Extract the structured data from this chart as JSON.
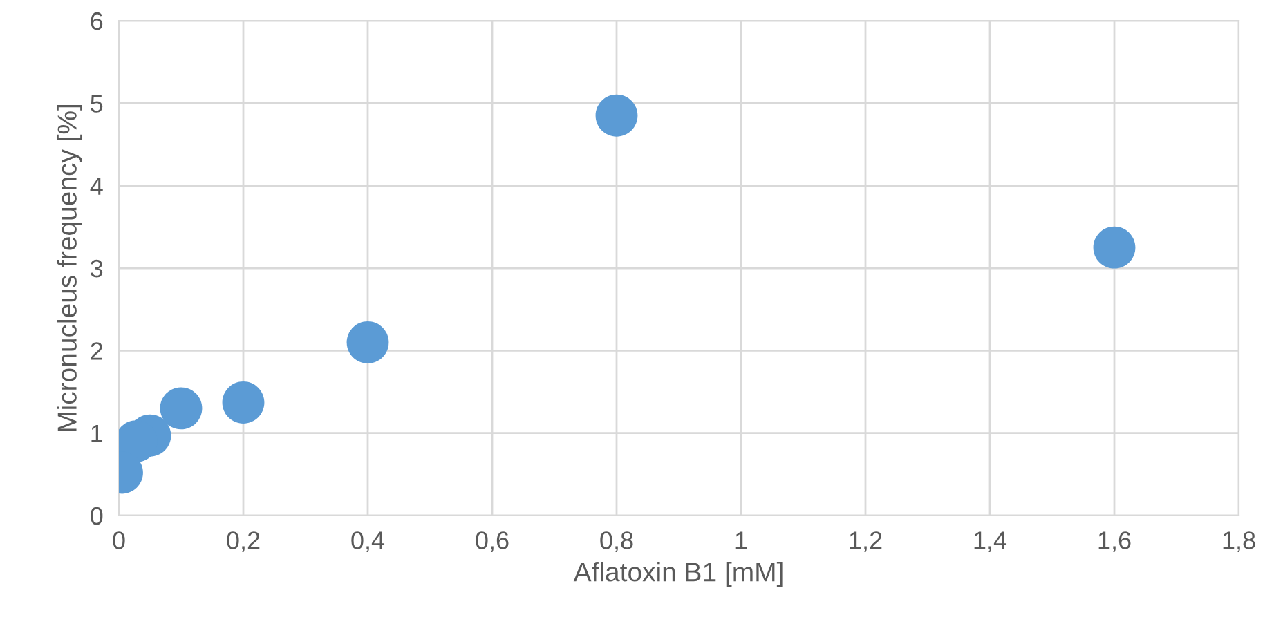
{
  "chart_data": {
    "type": "scatter",
    "xlabel": "Aflatoxin B1 [mM]",
    "ylabel": "Micronucleus frequency [%]",
    "series": [
      {
        "color": "#5b9bd5",
        "x": [
          0.005,
          0.028,
          0.05,
          0.1,
          0.2,
          0.4,
          0.8,
          1.6
        ],
        "values": [
          0.52,
          0.9,
          0.97,
          1.3,
          1.37,
          2.1,
          4.85,
          3.25
        ]
      }
    ],
    "marker": "circle",
    "grid": true,
    "legend": false,
    "xlim": [
      0,
      1.8
    ],
    "ylim": [
      0,
      6
    ],
    "xticks": [
      0,
      {
        "value": 0.2,
        "label": "0,2"
      },
      {
        "value": 0.4,
        "label": "0,4"
      },
      {
        "value": 0.6,
        "label": "0,6"
      },
      {
        "value": 0.8,
        "label": "0,8"
      },
      1,
      {
        "value": 1.2,
        "label": "1,2"
      },
      {
        "value": 1.4,
        "label": "1,4"
      },
      {
        "value": 1.6,
        "label": "1,6"
      },
      {
        "value": 1.8,
        "label": "1,8"
      }
    ],
    "yticks": [
      0,
      1,
      2,
      3,
      4,
      5,
      6
    ]
  }
}
